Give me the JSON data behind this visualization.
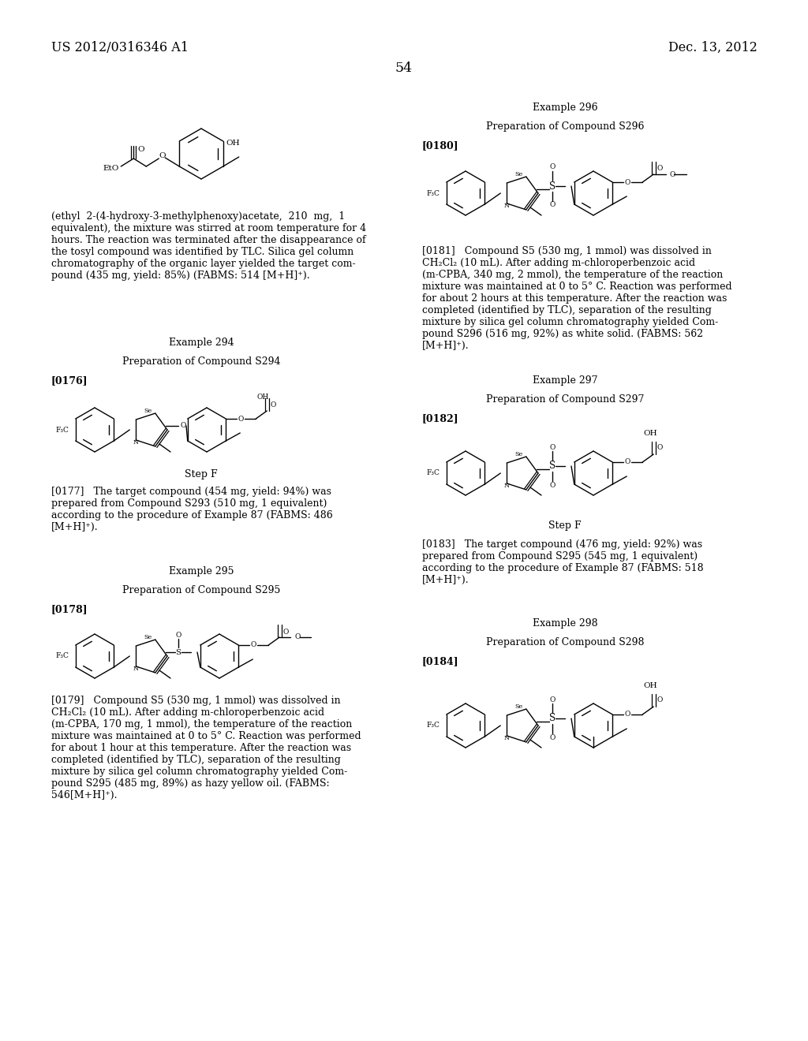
{
  "page_header_left": "US 2012/0316346 A1",
  "page_header_right": "Dec. 13, 2012",
  "page_number": "54",
  "bg": "#ffffff",
  "fg": "#000000",
  "fs_header": 11.5,
  "fs_body": 9.0,
  "fs_chem": 7.5,
  "fs_small": 6.5,
  "fs_tiny": 5.8
}
